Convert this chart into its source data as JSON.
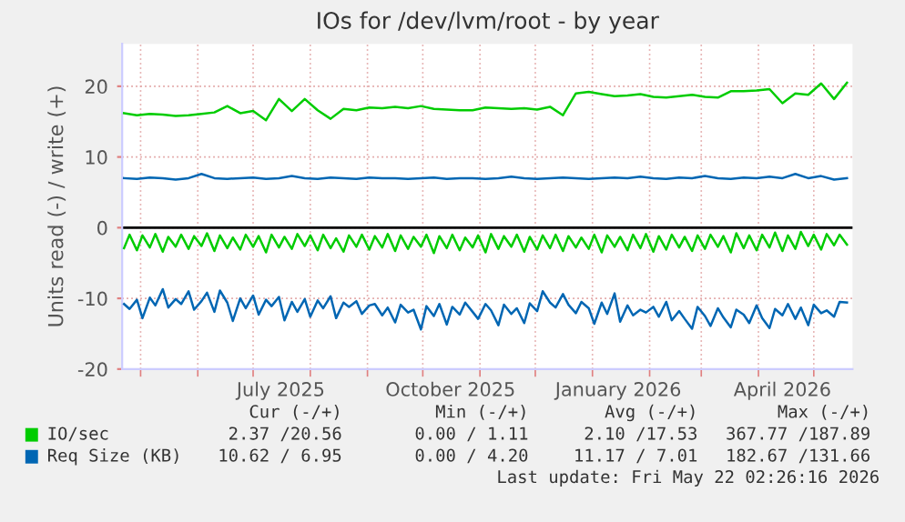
{
  "chart_data": {
    "type": "line",
    "title": "IOs for /dev/lvm/root - by year",
    "ylabel": "Units read (-) / write (+)",
    "xlim": [
      "2025-04-21",
      "2026-05-22"
    ],
    "ylim": [
      -20,
      26
    ],
    "yticks": [
      20,
      10,
      0,
      -10,
      -20
    ],
    "xticks": [
      {
        "value": "2025-05-01",
        "label": null
      },
      {
        "value": "2025-06-01",
        "label": null
      },
      {
        "value": "2025-07-01",
        "label": null
      },
      {
        "value": "2025-07-16",
        "label": "July 2025"
      },
      {
        "value": "2025-08-01",
        "label": null
      },
      {
        "value": "2025-09-01",
        "label": null
      },
      {
        "value": "2025-10-01",
        "label": null
      },
      {
        "value": "2025-10-16",
        "label": "October 2025"
      },
      {
        "value": "2025-11-01",
        "label": null
      },
      {
        "value": "2025-12-01",
        "label": null
      },
      {
        "value": "2026-01-01",
        "label": null
      },
      {
        "value": "2026-01-15",
        "label": "January 2026"
      },
      {
        "value": "2026-02-01",
        "label": null
      },
      {
        "value": "2026-03-01",
        "label": null
      },
      {
        "value": "2026-04-01",
        "label": null
      },
      {
        "value": "2026-04-14",
        "label": "April 2026"
      },
      {
        "value": "2026-05-01",
        "label": null
      }
    ],
    "grid": true,
    "legend": "bottom",
    "marker": "none",
    "line_style": "solid",
    "ref_lines": [
      {
        "axis": "y",
        "value": 0,
        "label": null,
        "color": "#000000"
      }
    ],
    "series": [
      {
        "name": "IO/sec",
        "color": "#00cc00",
        "x": [
          "2025-04-22",
          "2025-04-29",
          "2025-05-06",
          "2025-05-13",
          "2025-05-20",
          "2025-05-27",
          "2025-06-03",
          "2025-06-10",
          "2025-06-17",
          "2025-06-24",
          "2025-07-01",
          "2025-07-08",
          "2025-07-15",
          "2025-07-22",
          "2025-07-29",
          "2025-08-05",
          "2025-08-12",
          "2025-08-19",
          "2025-08-26",
          "2025-09-02",
          "2025-09-09",
          "2025-09-16",
          "2025-09-23",
          "2025-09-30",
          "2025-10-07",
          "2025-10-14",
          "2025-10-21",
          "2025-10-28",
          "2025-11-04",
          "2025-11-11",
          "2025-11-18",
          "2025-11-25",
          "2025-12-02",
          "2025-12-09",
          "2025-12-16",
          "2025-12-23",
          "2025-12-30",
          "2026-01-06",
          "2026-01-13",
          "2026-01-20",
          "2026-01-27",
          "2026-02-03",
          "2026-02-10",
          "2026-02-17",
          "2026-02-24",
          "2026-03-03",
          "2026-03-10",
          "2026-03-17",
          "2026-03-24",
          "2026-03-31",
          "2026-04-07",
          "2026-04-14",
          "2026-04-21",
          "2026-04-28",
          "2026-05-05",
          "2026-05-12",
          "2026-05-19"
        ],
        "values": [
          16.2,
          15.9,
          16.1,
          16.0,
          15.8,
          15.9,
          16.1,
          16.3,
          17.2,
          16.2,
          16.5,
          15.2,
          18.2,
          16.5,
          18.2,
          16.6,
          15.4,
          16.8,
          16.6,
          17.0,
          16.9,
          17.1,
          16.9,
          17.2,
          16.8,
          16.7,
          16.6,
          16.6,
          17.0,
          16.9,
          16.8,
          16.9,
          16.7,
          17.1,
          15.9,
          19.0,
          19.2,
          18.9,
          18.6,
          18.7,
          18.9,
          18.5,
          18.4,
          18.6,
          18.8,
          18.5,
          18.4,
          19.3,
          19.3,
          19.4,
          19.6,
          17.6,
          19.0,
          18.8,
          20.4,
          18.2,
          20.5
        ]
      },
      {
        "name": "Req Size (KB)",
        "color": "#0066b3",
        "x": [
          "2025-04-22",
          "2025-04-29",
          "2025-05-06",
          "2025-05-13",
          "2025-05-20",
          "2025-05-27",
          "2025-06-03",
          "2025-06-10",
          "2025-06-17",
          "2025-06-24",
          "2025-07-01",
          "2025-07-08",
          "2025-07-15",
          "2025-07-22",
          "2025-07-29",
          "2025-08-05",
          "2025-08-12",
          "2025-08-19",
          "2025-08-26",
          "2025-09-02",
          "2025-09-09",
          "2025-09-16",
          "2025-09-23",
          "2025-09-30",
          "2025-10-07",
          "2025-10-14",
          "2025-10-21",
          "2025-10-28",
          "2025-11-04",
          "2025-11-11",
          "2025-11-18",
          "2025-11-25",
          "2025-12-02",
          "2025-12-09",
          "2025-12-16",
          "2025-12-23",
          "2025-12-30",
          "2026-01-06",
          "2026-01-13",
          "2026-01-20",
          "2026-01-27",
          "2026-02-03",
          "2026-02-10",
          "2026-02-17",
          "2026-02-24",
          "2026-03-03",
          "2026-03-10",
          "2026-03-17",
          "2026-03-24",
          "2026-03-31",
          "2026-04-07",
          "2026-04-14",
          "2026-04-21",
          "2026-04-28",
          "2026-05-05",
          "2026-05-12",
          "2026-05-19"
        ],
        "values": [
          7.0,
          6.9,
          7.1,
          7.0,
          6.8,
          7.0,
          7.6,
          7.0,
          6.9,
          7.0,
          7.1,
          6.9,
          7.0,
          7.3,
          7.0,
          6.9,
          7.1,
          7.0,
          6.9,
          7.1,
          7.0,
          7.0,
          6.9,
          7.0,
          7.1,
          6.9,
          7.0,
          7.0,
          6.9,
          7.0,
          7.2,
          7.0,
          6.9,
          7.0,
          7.1,
          7.0,
          6.9,
          7.0,
          7.1,
          7.0,
          7.2,
          7.0,
          6.9,
          7.1,
          7.0,
          7.3,
          7.0,
          6.9,
          7.1,
          7.0,
          7.2,
          7.0,
          7.6,
          7.0,
          7.3,
          6.8,
          7.0
        ]
      },
      {
        "color": "#00cc00",
        "x": [
          "2025-04-22",
          "2025-04-25",
          "2025-04-29",
          "2025-05-02",
          "2025-05-06",
          "2025-05-09",
          "2025-05-13",
          "2025-05-16",
          "2025-05-20",
          "2025-05-23",
          "2025-05-27",
          "2025-05-30",
          "2025-06-03",
          "2025-06-06",
          "2025-06-10",
          "2025-06-13",
          "2025-06-17",
          "2025-06-20",
          "2025-06-24",
          "2025-06-27",
          "2025-07-01",
          "2025-07-04",
          "2025-07-08",
          "2025-07-11",
          "2025-07-15",
          "2025-07-18",
          "2025-07-22",
          "2025-07-25",
          "2025-07-29",
          "2025-08-01",
          "2025-08-05",
          "2025-08-08",
          "2025-08-12",
          "2025-08-15",
          "2025-08-19",
          "2025-08-22",
          "2025-08-26",
          "2025-08-29",
          "2025-09-02",
          "2025-09-05",
          "2025-09-09",
          "2025-09-12",
          "2025-09-16",
          "2025-09-19",
          "2025-09-23",
          "2025-09-26",
          "2025-09-30",
          "2025-10-03",
          "2025-10-07",
          "2025-10-10",
          "2025-10-14",
          "2025-10-17",
          "2025-10-21",
          "2025-10-24",
          "2025-10-28",
          "2025-10-31",
          "2025-11-04",
          "2025-11-07",
          "2025-11-11",
          "2025-11-14",
          "2025-11-18",
          "2025-11-21",
          "2025-11-25",
          "2025-11-28",
          "2025-12-02",
          "2025-12-05",
          "2025-12-09",
          "2025-12-12",
          "2025-12-16",
          "2025-12-19",
          "2025-12-23",
          "2025-12-26",
          "2025-12-30",
          "2026-01-02",
          "2026-01-06",
          "2026-01-09",
          "2026-01-13",
          "2026-01-16",
          "2026-01-20",
          "2026-01-23",
          "2026-01-27",
          "2026-01-30",
          "2026-02-03",
          "2026-02-06",
          "2026-02-10",
          "2026-02-13",
          "2026-02-17",
          "2026-02-20",
          "2026-02-24",
          "2026-02-27",
          "2026-03-03",
          "2026-03-06",
          "2026-03-10",
          "2026-03-13",
          "2026-03-17",
          "2026-03-20",
          "2026-03-24",
          "2026-03-27",
          "2026-03-31",
          "2026-04-03",
          "2026-04-07",
          "2026-04-10",
          "2026-04-14",
          "2026-04-17",
          "2026-04-21",
          "2026-04-24",
          "2026-04-28",
          "2026-05-01",
          "2026-05-05",
          "2026-05-08",
          "2026-05-12",
          "2026-05-15",
          "2026-05-19"
        ],
        "values": [
          -2.9,
          -1.0,
          -3.2,
          -1.1,
          -2.8,
          -0.9,
          -3.4,
          -1.3,
          -2.7,
          -1.0,
          -3.0,
          -1.2,
          -2.6,
          -0.8,
          -3.3,
          -1.1,
          -2.9,
          -1.4,
          -3.1,
          -1.0,
          -2.7,
          -1.2,
          -3.5,
          -1.0,
          -2.8,
          -1.3,
          -3.0,
          -0.9,
          -2.6,
          -1.1,
          -3.2,
          -1.0,
          -2.9,
          -1.5,
          -3.4,
          -1.1,
          -2.7,
          -1.0,
          -3.1,
          -1.2,
          -2.8,
          -0.9,
          -3.3,
          -1.1,
          -3.0,
          -1.3,
          -2.7,
          -1.0,
          -3.6,
          -1.2,
          -2.9,
          -1.0,
          -3.2,
          -1.4,
          -2.8,
          -1.1,
          -3.5,
          -0.9,
          -3.0,
          -1.2,
          -2.7,
          -1.0,
          -3.4,
          -1.3,
          -3.1,
          -1.1,
          -2.9,
          -1.0,
          -3.3,
          -1.2,
          -2.8,
          -1.4,
          -3.0,
          -1.0,
          -3.5,
          -1.1,
          -2.7,
          -1.3,
          -3.2,
          -1.0,
          -2.9,
          -0.9,
          -3.4,
          -1.2,
          -3.1,
          -1.0,
          -2.8,
          -1.3,
          -3.3,
          -1.1,
          -3.0,
          -1.0,
          -2.7,
          -1.2,
          -3.5,
          -0.8,
          -2.9,
          -1.1,
          -3.2,
          -1.0,
          -2.8,
          -0.7,
          -3.3,
          -1.1,
          -3.0,
          -0.6,
          -2.6,
          -1.0,
          -3.1,
          -0.9,
          -2.5,
          -1.0,
          -2.4
        ]
      },
      {
        "color": "#0066b3",
        "x": [
          "2025-04-22",
          "2025-04-25",
          "2025-04-29",
          "2025-05-02",
          "2025-05-06",
          "2025-05-09",
          "2025-05-13",
          "2025-05-16",
          "2025-05-20",
          "2025-05-23",
          "2025-05-27",
          "2025-05-30",
          "2025-06-03",
          "2025-06-06",
          "2025-06-10",
          "2025-06-13",
          "2025-06-17",
          "2025-06-20",
          "2025-06-24",
          "2025-06-27",
          "2025-07-01",
          "2025-07-04",
          "2025-07-08",
          "2025-07-11",
          "2025-07-15",
          "2025-07-18",
          "2025-07-22",
          "2025-07-25",
          "2025-07-29",
          "2025-08-01",
          "2025-08-05",
          "2025-08-08",
          "2025-08-12",
          "2025-08-15",
          "2025-08-19",
          "2025-08-22",
          "2025-08-26",
          "2025-08-29",
          "2025-09-02",
          "2025-09-05",
          "2025-09-09",
          "2025-09-12",
          "2025-09-16",
          "2025-09-19",
          "2025-09-23",
          "2025-09-26",
          "2025-09-30",
          "2025-10-03",
          "2025-10-07",
          "2025-10-10",
          "2025-10-14",
          "2025-10-17",
          "2025-10-21",
          "2025-10-24",
          "2025-10-28",
          "2025-10-31",
          "2025-11-04",
          "2025-11-07",
          "2025-11-11",
          "2025-11-14",
          "2025-11-18",
          "2025-11-21",
          "2025-11-25",
          "2025-11-28",
          "2025-12-02",
          "2025-12-05",
          "2025-12-09",
          "2025-12-12",
          "2025-12-16",
          "2025-12-19",
          "2025-12-23",
          "2025-12-26",
          "2025-12-30",
          "2026-01-02",
          "2026-01-06",
          "2026-01-09",
          "2026-01-13",
          "2026-01-16",
          "2026-01-20",
          "2026-01-23",
          "2026-01-27",
          "2026-01-30",
          "2026-02-03",
          "2026-02-06",
          "2026-02-10",
          "2026-02-13",
          "2026-02-17",
          "2026-02-20",
          "2026-02-24",
          "2026-02-27",
          "2026-03-03",
          "2026-03-06",
          "2026-03-10",
          "2026-03-13",
          "2026-03-17",
          "2026-03-20",
          "2026-03-24",
          "2026-03-27",
          "2026-03-31",
          "2026-04-03",
          "2026-04-07",
          "2026-04-10",
          "2026-04-14",
          "2026-04-17",
          "2026-04-21",
          "2026-04-24",
          "2026-04-28",
          "2026-05-01",
          "2026-05-05",
          "2026-05-08",
          "2026-05-12",
          "2026-05-15",
          "2026-05-19"
        ],
        "values": [
          -10.8,
          -11.5,
          -10.2,
          -12.8,
          -9.9,
          -11.0,
          -8.7,
          -11.3,
          -10.1,
          -10.8,
          -9.0,
          -11.6,
          -10.4,
          -9.2,
          -11.9,
          -8.9,
          -10.6,
          -13.2,
          -10.0,
          -11.4,
          -9.6,
          -12.3,
          -10.2,
          -11.1,
          -9.8,
          -13.1,
          -10.5,
          -11.9,
          -10.1,
          -12.6,
          -10.3,
          -11.4,
          -9.7,
          -12.8,
          -10.6,
          -11.2,
          -10.4,
          -12.2,
          -11.0,
          -10.8,
          -12.4,
          -11.3,
          -13.4,
          -10.9,
          -12.0,
          -11.6,
          -14.4,
          -11.1,
          -12.5,
          -10.8,
          -13.7,
          -11.2,
          -12.3,
          -10.6,
          -11.9,
          -12.9,
          -10.8,
          -11.7,
          -13.8,
          -10.9,
          -12.2,
          -11.4,
          -13.5,
          -10.7,
          -11.8,
          -9.0,
          -10.6,
          -11.3,
          -9.4,
          -10.9,
          -12.1,
          -10.5,
          -11.4,
          -13.6,
          -10.6,
          -12.2,
          -9.3,
          -13.3,
          -11.0,
          -12.4,
          -11.6,
          -12.0,
          -11.2,
          -12.6,
          -10.5,
          -13.1,
          -11.8,
          -12.9,
          -14.3,
          -11.2,
          -12.5,
          -13.9,
          -11.4,
          -12.7,
          -14.1,
          -11.6,
          -12.3,
          -13.5,
          -11.0,
          -12.8,
          -14.2,
          -11.5,
          -12.4,
          -10.8,
          -12.9,
          -11.3,
          -13.8,
          -10.9,
          -12.1,
          -11.7,
          -12.6,
          -10.5,
          -10.6
        ]
      }
    ],
    "annotations": [
      "Cur (-/+)",
      "Min (-/+)",
      "Avg (-/+)",
      "Max (-/+)",
      "2.37 /20.56",
      "0.00 / 1.11",
      "2.10 /17.53",
      "367.77 /187.89",
      "10.62 / 6.95",
      "0.00 / 4.20",
      "11.17 / 7.01",
      "182.67 /131.66",
      "Last update: Fri May 22 02:26:16 2026"
    ]
  }
}
